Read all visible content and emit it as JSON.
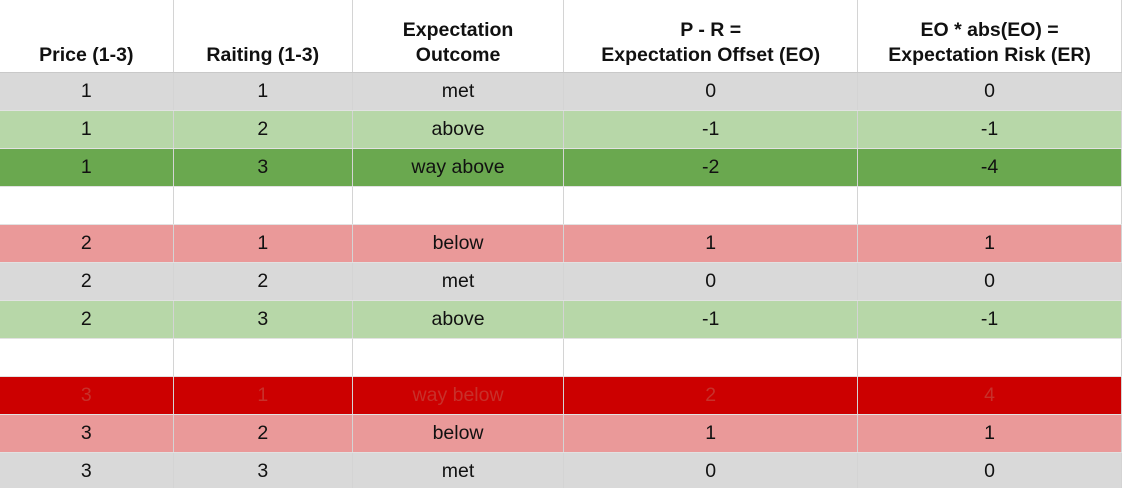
{
  "sheet": {
    "headers": [
      {
        "lines": [
          "Price (1-3)"
        ]
      },
      {
        "lines": [
          "Raiting (1-3)"
        ]
      },
      {
        "lines": [
          "Expectation",
          "Outcome"
        ]
      },
      {
        "lines": [
          "P - R =",
          "Expectation Offset (EO)"
        ]
      },
      {
        "lines": [
          "EO * abs(EO) =",
          "Expectation Risk (ER)"
        ]
      }
    ],
    "rows": [
      {
        "band": "met",
        "cells": [
          "1",
          "1",
          "met",
          "0",
          "0"
        ]
      },
      {
        "band": "above",
        "cells": [
          "1",
          "2",
          "above",
          "-1",
          "-1"
        ]
      },
      {
        "band": "wayabove",
        "cells": [
          "1",
          "3",
          "way above",
          "-2",
          "-4"
        ]
      },
      {
        "band": "empty",
        "cells": [
          "",
          "",
          "",
          "",
          ""
        ]
      },
      {
        "band": "below",
        "cells": [
          "2",
          "1",
          "below",
          "1",
          "1"
        ]
      },
      {
        "band": "met",
        "cells": [
          "2",
          "2",
          "met",
          "0",
          "0"
        ]
      },
      {
        "band": "above",
        "cells": [
          "2",
          "3",
          "above",
          "-1",
          "-1"
        ]
      },
      {
        "band": "empty",
        "cells": [
          "",
          "",
          "",
          "",
          ""
        ]
      },
      {
        "band": "waybelow",
        "cells": [
          "3",
          "1",
          "way below",
          "2",
          "4"
        ]
      },
      {
        "band": "below",
        "cells": [
          "3",
          "2",
          "below",
          "1",
          "1"
        ]
      },
      {
        "band": "met",
        "cells": [
          "3",
          "3",
          "met",
          "0",
          "0"
        ]
      }
    ],
    "band_colors": {
      "met": "#d9d9d9",
      "above": "#b7d7a8",
      "wayabove": "#6aa84f",
      "below": "#ea9999",
      "waybelow": "#cc0000"
    }
  }
}
